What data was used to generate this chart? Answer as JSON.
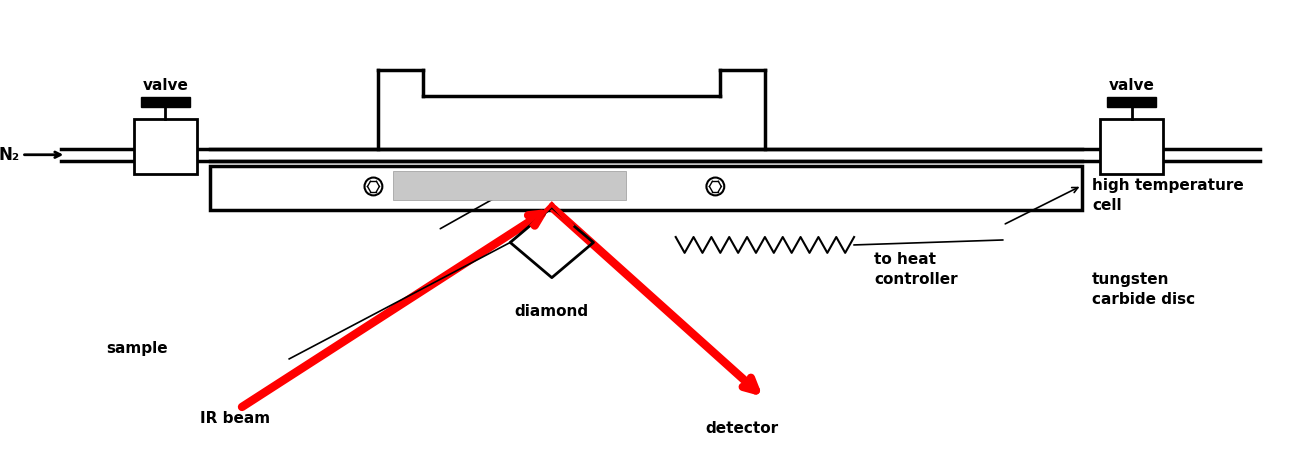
{
  "fig_width": 13.08,
  "fig_height": 4.76,
  "bg_color": "#ffffff",
  "line_color": "#000000",
  "red_color": "#ff0000",
  "labels": {
    "valve_left": "valve",
    "valve_right": "valve",
    "n2": "N₂",
    "sample": "sample",
    "ir_beam": "IR beam",
    "diamond": "diamond",
    "detector": "detector",
    "high_temp": "high temperature\ncell",
    "to_heat": "to heat\ncontroller",
    "tungsten": "tungsten\ncarbide disc"
  },
  "font_size": 11
}
